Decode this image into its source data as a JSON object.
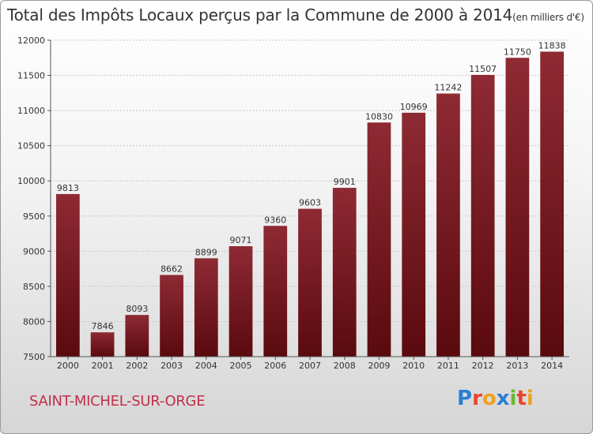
{
  "chart_data": {
    "type": "bar",
    "title": "Total des Impôts Locaux perçus par la Commune de 2000 à 2014",
    "unit": "(en milliers d'€)",
    "categories": [
      "2000",
      "2001",
      "2002",
      "2003",
      "2004",
      "2005",
      "2006",
      "2007",
      "2008",
      "2009",
      "2010",
      "2011",
      "2012",
      "2013",
      "2014"
    ],
    "values": [
      9813,
      7846,
      8093,
      8662,
      8899,
      9071,
      9360,
      9603,
      9901,
      10830,
      10969,
      11242,
      11507,
      11750,
      11838
    ],
    "ylim": [
      7500,
      12000
    ],
    "yticks": [
      7500,
      8000,
      8500,
      9000,
      9500,
      10000,
      10500,
      11000,
      11500,
      12000
    ],
    "xlabel": "",
    "ylabel": "",
    "bar_color": "#7a1a20"
  },
  "commune": "SAINT-MICHEL-SUR-ORGE",
  "logo": {
    "text": "Proxiti",
    "letters": [
      {
        "ch": "P",
        "color": "#2a7fd4"
      },
      {
        "ch": "r",
        "color": "#e8452c"
      },
      {
        "ch": "o",
        "color": "#f0a020"
      },
      {
        "ch": "x",
        "color": "#2a7fd4"
      },
      {
        "ch": "i",
        "color": "#6ab82e"
      },
      {
        "ch": "t",
        "color": "#e8452c"
      },
      {
        "ch": "i",
        "color": "#f0a020"
      }
    ]
  }
}
